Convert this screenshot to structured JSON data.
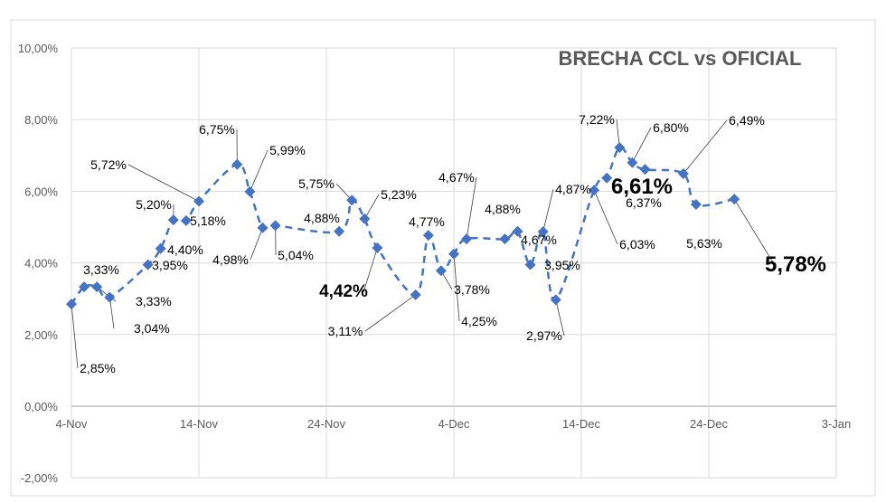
{
  "chart_data": {
    "type": "line",
    "title": "BRECHA CCL vs OFICIAL",
    "xlabel": "",
    "ylabel": "",
    "x_ticks": [
      "4-Nov",
      "14-Nov",
      "24-Nov",
      "4-Dec",
      "14-Dec",
      "24-Dec",
      "3-Jan"
    ],
    "y_ticks": [
      "-2,00%",
      "0,00%",
      "2,00%",
      "4,00%",
      "6,00%",
      "8,00%",
      "10,00%"
    ],
    "ylim": [
      -2,
      10
    ],
    "xlim": [
      "2024-11-04",
      "2025-01-03"
    ],
    "grid": true,
    "line_style": "dashed-smooth",
    "marker": "diamond",
    "color": "#4472C4",
    "series": [
      {
        "x": [
          "2024-11-04",
          "2024-11-05",
          "2024-11-06",
          "2024-11-07",
          "2024-11-10",
          "2024-11-11",
          "2024-11-12",
          "2024-11-13",
          "2024-11-14",
          "2024-11-17",
          "2024-11-18",
          "2024-11-19",
          "2024-11-20",
          "2024-11-25",
          "2024-11-26",
          "2024-11-27",
          "2024-11-28",
          "2024-12-01",
          "2024-12-02",
          "2024-12-03",
          "2024-12-04",
          "2024-12-05",
          "2024-12-08",
          "2024-12-09",
          "2024-12-10",
          "2024-12-11",
          "2024-12-12",
          "2024-12-15",
          "2024-12-16",
          "2024-12-17",
          "2024-12-18",
          "2024-12-19",
          "2024-12-22",
          "2024-12-23",
          "2024-12-26"
        ],
        "values": [
          2.85,
          3.33,
          3.33,
          3.04,
          3.95,
          4.4,
          5.2,
          5.18,
          5.72,
          6.75,
          5.99,
          4.98,
          5.04,
          4.88,
          5.75,
          5.23,
          4.42,
          3.11,
          4.77,
          3.78,
          4.25,
          4.67,
          4.67,
          4.88,
          3.95,
          4.87,
          2.97,
          6.03,
          6.37,
          7.22,
          6.8,
          6.61,
          6.49,
          5.63,
          5.78
        ],
        "labels": [
          "2,85%",
          "3,33%",
          "3,33%",
          "3,04%",
          "3,95%",
          "4,40%",
          "5,20%",
          "5,18%",
          "5,72%",
          "6,75%",
          "5,99%",
          "4,98%",
          "5,04%",
          "4,88%",
          "5,75%",
          "5,23%",
          "4,42%",
          "3,11%",
          "4,77%",
          "3,78%",
          "4,25%",
          "4,67%",
          "4,67%",
          "4,88%",
          "3,95%",
          "4,87%",
          "2,97%",
          "6,03%",
          "6,37%",
          "7,22%",
          "6,80%",
          "6,61%",
          "6,49%",
          "5,63%",
          "5,78%"
        ]
      }
    ]
  }
}
